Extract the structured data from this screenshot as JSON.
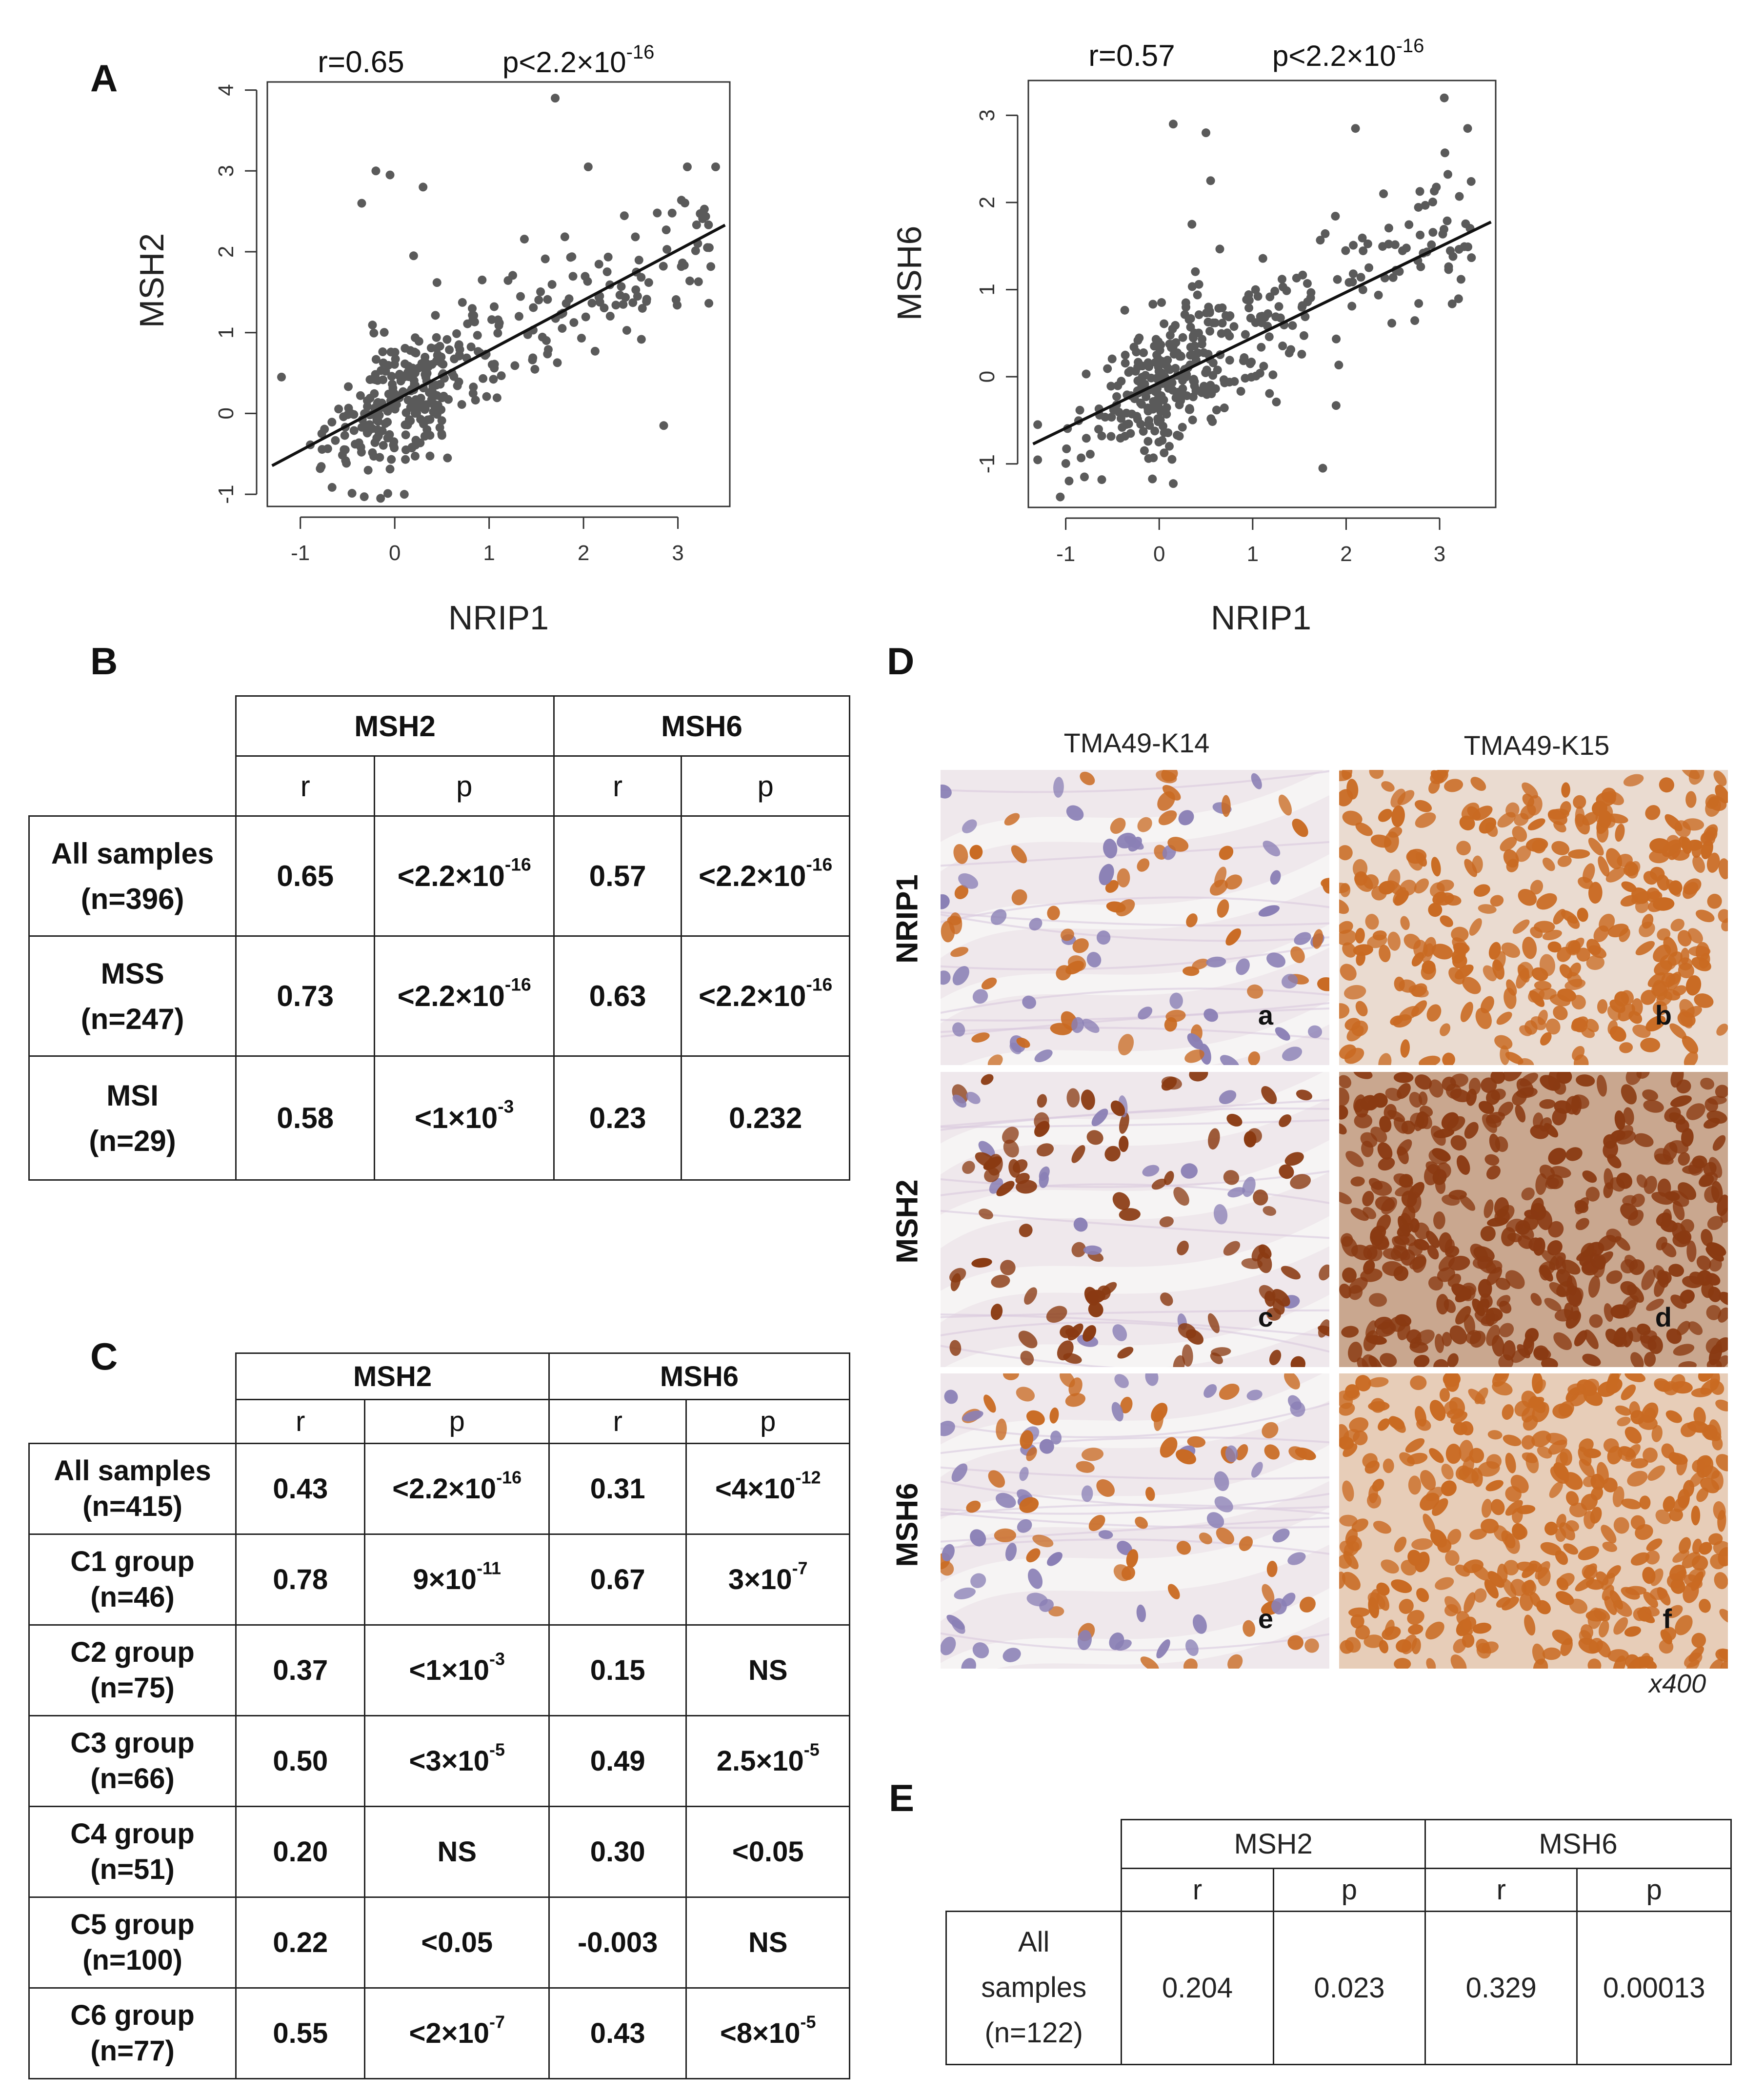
{
  "panels": {
    "a": "A",
    "b": "B",
    "c": "C",
    "d": "D",
    "e": "E"
  },
  "chart_data": [
    {
      "type": "scatter",
      "title": "r=0.65",
      "title_p_base": "p<2.2×10",
      "title_p_exp": "-16",
      "xlabel": "NRIP1",
      "ylabel": "MSH2",
      "xlim": [
        -1.35,
        3.55
      ],
      "ylim": [
        -1.15,
        4.1
      ],
      "xticks": [
        "-1",
        "0",
        "1",
        "2",
        "3"
      ],
      "yticks": [
        "-1",
        "0",
        "1",
        "2",
        "3",
        "4"
      ],
      "regression": {
        "slope": 0.62,
        "intercept": 0.16
      },
      "n_points": 396,
      "seed": 11,
      "outliers": [
        [
          -0.2,
          3.0
        ],
        [
          -0.05,
          2.95
        ],
        [
          0.3,
          2.8
        ],
        [
          -0.35,
          2.6
        ],
        [
          1.7,
          3.9
        ],
        [
          2.05,
          3.05
        ],
        [
          2.85,
          -0.15
        ],
        [
          3.1,
          3.05
        ],
        [
          3.4,
          3.05
        ],
        [
          -1.2,
          0.45
        ],
        [
          -0.15,
          -1.05
        ],
        [
          0.2,
          1.95
        ]
      ]
    },
    {
      "type": "scatter",
      "title": "r=0.57",
      "title_p_base": "p<2.2×10",
      "title_p_exp": "-16",
      "xlabel": "NRIP1",
      "ylabel": "MSH6",
      "xlim": [
        -1.4,
        3.6
      ],
      "ylim": [
        -1.5,
        3.4
      ],
      "xticks": [
        "-1",
        "0",
        "1",
        "2",
        "3"
      ],
      "yticks": [
        "-1",
        "0",
        "1",
        "2",
        "3"
      ],
      "regression": {
        "slope": 0.52,
        "intercept": -0.07
      },
      "n_points": 396,
      "seed": 23,
      "outliers": [
        [
          0.15,
          2.9
        ],
        [
          0.5,
          2.8
        ],
        [
          0.55,
          2.25
        ],
        [
          2.1,
          2.85
        ],
        [
          3.05,
          3.2
        ],
        [
          3.3,
          2.85
        ],
        [
          1.75,
          -1.05
        ],
        [
          -0.8,
          -1.15
        ],
        [
          0.35,
          1.75
        ],
        [
          2.4,
          2.1
        ],
        [
          -1.3,
          -0.55
        ]
      ]
    }
  ],
  "table_b": {
    "header": {
      "msh2": "MSH2",
      "msh6": "MSH6",
      "r": "r",
      "p": "p"
    },
    "rows": [
      {
        "l1": "All samples",
        "l2": "(n=396)",
        "r1": "0.65",
        "p1_base": "<2.2×10",
        "p1_exp": "-16",
        "r2": "0.57",
        "p2_base": "<2.2×10",
        "p2_exp": "-16"
      },
      {
        "l1": "MSS",
        "l2": "(n=247)",
        "r1": "0.73",
        "p1_base": "<2.2×10",
        "p1_exp": "-16",
        "r2": "0.63",
        "p2_base": "<2.2×10",
        "p2_exp": "-16"
      },
      {
        "l1": "MSI",
        "l2": "(n=29)",
        "r1": "0.58",
        "p1_base": "<1×10",
        "p1_exp": "-3",
        "r2": "0.23",
        "p2_base": "0.232",
        "p2_exp": ""
      }
    ]
  },
  "table_c": {
    "header": {
      "msh2": "MSH2",
      "msh6": "MSH6",
      "r": "r",
      "p": "p"
    },
    "rows": [
      {
        "l1": "All samples",
        "l2": "(n=415)",
        "r1": "0.43",
        "p1_base": "<2.2×10",
        "p1_exp": "-16",
        "r2": "0.31",
        "p2_base": "<4×10",
        "p2_exp": "-12"
      },
      {
        "l1": "C1 group",
        "l2": "(n=46)",
        "r1": "0.78",
        "p1_base": "9×10",
        "p1_exp": "-11",
        "r2": "0.67",
        "p2_base": "3×10",
        "p2_exp": "-7"
      },
      {
        "l1": "C2 group",
        "l2": "(n=75)",
        "r1": "0.37",
        "p1_base": "<1×10",
        "p1_exp": "-3",
        "r2": "0.15",
        "p2_base": "NS",
        "p2_exp": ""
      },
      {
        "l1": "C3 group",
        "l2": "(n=66)",
        "r1": "0.50",
        "p1_base": "<3×10",
        "p1_exp": "-5",
        "r2": "0.49",
        "p2_base": "2.5×10",
        "p2_exp": "-5"
      },
      {
        "l1": "C4 group",
        "l2": "(n=51)",
        "r1": "0.20",
        "p1_base": "NS",
        "p1_exp": "",
        "r2": "0.30",
        "p2_base": "<0.05",
        "p2_exp": ""
      },
      {
        "l1": "C5 group",
        "l2": "(n=100)",
        "r1": "0.22",
        "p1_base": "<0.05",
        "p1_exp": "",
        "r2": "-0.003",
        "p2_base": "NS",
        "p2_exp": ""
      },
      {
        "l1": "C6 group",
        "l2": "(n=77)",
        "r1": "0.55",
        "p1_base": "<2×10",
        "p1_exp": "-7",
        "r2": "0.43",
        "p2_base": "<8×10",
        "p2_exp": "-5"
      }
    ]
  },
  "panel_d": {
    "col1": "TMA49-K14",
    "col2": "TMA49-K15",
    "row1": "NRIP1",
    "row2": "MSH2",
    "row3": "MSH6",
    "letters": [
      "a",
      "b",
      "c",
      "d",
      "e",
      "f"
    ],
    "magnification": "x400",
    "colors": {
      "tissue_bg": "#efe8ec",
      "stroma": "#d8c8dd",
      "nucleus_blue": "#8a7fb5",
      "nucleus_brown": "#8a3a12",
      "nucleus_orange": "#c96a22"
    }
  },
  "table_e": {
    "header": {
      "msh2": "MSH2",
      "msh6": "MSH6",
      "r": "r",
      "p": "p"
    },
    "row": {
      "l1": "All",
      "l2": "samples",
      "l3": "(n=122)",
      "r1": "0.204",
      "p1": "0.023",
      "r2": "0.329",
      "p2": "0.00013"
    }
  }
}
